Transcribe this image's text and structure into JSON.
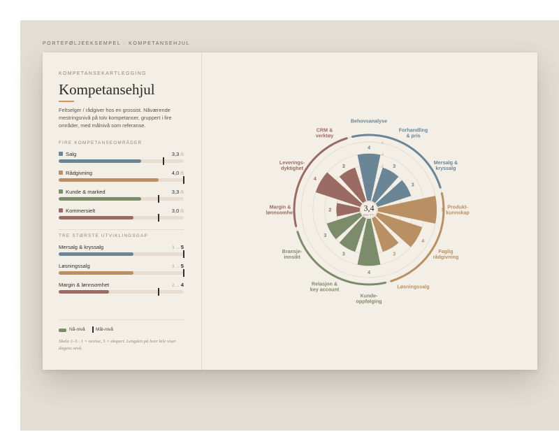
{
  "breadcrumb": "PORTEFØLJEEKSEMPEL · KOMPETANSEHJUL",
  "panel": {
    "eyebrow": "KOMPETANSEKARTLEGGING",
    "title": "Kompetansehjul",
    "description": "Feltselger / rådgiver hos en grossist. Nåværende mestringsnivå på tolv kompetanser, gruppert i fire områder, med målnivå som referanse.",
    "areas_heading": "FIRE KOMPETANSEOMRÅDER",
    "gaps_heading": "TRE STØRSTE UTVIKLINGSGAP",
    "legend_now": "Nå-nivå",
    "legend_goal": "Mål-nivå",
    "note": "Skala 1–5 · 1 = novise, 5 = ekspert. Lengden på hver kile viser dagens nivå."
  },
  "areas": [
    {
      "name": "Salg",
      "value": "3,3",
      "of": "/5",
      "level": 3.3,
      "target": 4.2,
      "color": "#6a8596"
    },
    {
      "name": "Rådgivning",
      "value": "4,0",
      "of": "/5",
      "level": 4.0,
      "target": 5.0,
      "color": "#b89063"
    },
    {
      "name": "Kunde & marked",
      "value": "3,3",
      "of": "/5",
      "level": 3.3,
      "target": 4.0,
      "color": "#7c8c6b"
    },
    {
      "name": "Kommersielt",
      "value": "3,0",
      "of": "/5",
      "level": 3.0,
      "target": 4.0,
      "color": "#9a6b62"
    }
  ],
  "gaps": [
    {
      "name": "Mersalg & kryssalg",
      "from": "3",
      "arrow": "→",
      "to": "5",
      "level": 3,
      "target": 5,
      "color": "#6a8596"
    },
    {
      "name": "Løsningssalg",
      "from": "3",
      "arrow": "→",
      "to": "5",
      "level": 3,
      "target": 5,
      "color": "#b89063"
    },
    {
      "name": "Margin & lønnsomhet",
      "from": "2",
      "arrow": "→",
      "to": "4",
      "level": 2,
      "target": 4,
      "color": "#9a6b62"
    }
  ],
  "chart_data": {
    "type": "polar-bar",
    "scale_max": 5,
    "ring_ticks": [
      "1",
      "2",
      "3",
      "4",
      "5"
    ],
    "center_value": "3,4",
    "center_label": "SNITT",
    "groups": [
      {
        "name": "Salg",
        "color": "#6a8596"
      },
      {
        "name": "Rådgivning",
        "color": "#b89063"
      },
      {
        "name": "Kunde & marked",
        "color": "#7c8c6b"
      },
      {
        "name": "Kommersielt",
        "color": "#9a6b62"
      }
    ],
    "categories": [
      {
        "label": [
          "Behovsanalyse"
        ],
        "value": 4,
        "group": 0
      },
      {
        "label": [
          "Forhandling",
          "& pris"
        ],
        "value": 3,
        "group": 0
      },
      {
        "label": [
          "Mersalg &",
          "kryssalg"
        ],
        "value": 3,
        "group": 0
      },
      {
        "label": [
          "Produkt-",
          "kunnskap"
        ],
        "value": 5,
        "group": 1
      },
      {
        "label": [
          "Faglig",
          "rådgivning"
        ],
        "value": 4,
        "group": 1
      },
      {
        "label": [
          "Løsningssalg"
        ],
        "value": 3,
        "group": 1
      },
      {
        "label": [
          "Kunde-",
          "oppfølging"
        ],
        "value": 4,
        "group": 2
      },
      {
        "label": [
          "Relasjon &",
          "key account"
        ],
        "value": 3,
        "group": 2
      },
      {
        "label": [
          "Bransje-",
          "innsikt"
        ],
        "value": 3,
        "group": 2
      },
      {
        "label": [
          "Margin &",
          "lønnsomhet"
        ],
        "value": 2,
        "group": 3
      },
      {
        "label": [
          "Leverings-",
          "dyktighet"
        ],
        "value": 4,
        "group": 3
      },
      {
        "label": [
          "CRM &",
          "verktøy"
        ],
        "value": 3,
        "group": 3
      }
    ]
  }
}
